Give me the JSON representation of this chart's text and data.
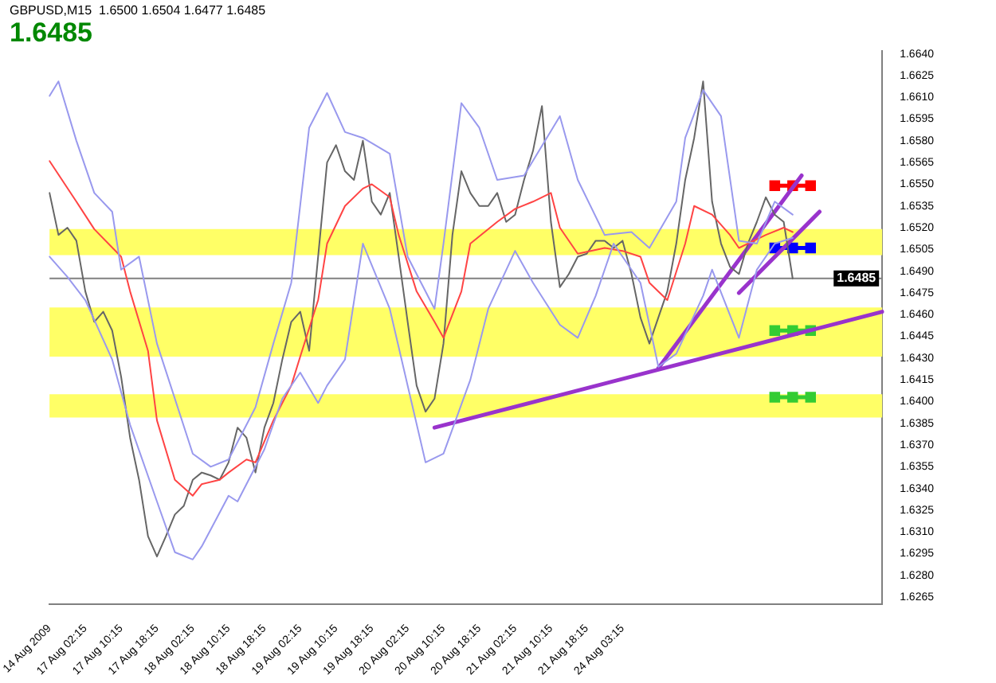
{
  "chart_data": {
    "type": "line",
    "title": "GBPUSD,M15  1.6500 1.6504 1.6477 1.6485",
    "subtitle": "1.6485",
    "categories": [
      "14 Aug 2009",
      null,
      null,
      null,
      "17 Aug 02:15",
      null,
      null,
      null,
      "17 Aug 10:15",
      null,
      null,
      null,
      "17 Aug 18:15",
      null,
      null,
      null,
      "18 Aug 02:15",
      null,
      null,
      null,
      "18 Aug 10:15",
      null,
      null,
      null,
      "18 Aug 18:15",
      null,
      null,
      null,
      "19 Aug 02:15",
      null,
      null,
      null,
      "19 Aug 10:15",
      null,
      null,
      null,
      "19 Aug 18:15",
      null,
      null,
      null,
      "20 Aug 02:15",
      null,
      null,
      null,
      "20 Aug 10:15",
      null,
      null,
      null,
      "20 Aug 18:15",
      null,
      null,
      null,
      "21 Aug 02:15",
      null,
      null,
      null,
      "21 Aug 10:15",
      null,
      null,
      null,
      "21 Aug 18:15",
      null,
      null,
      null,
      "24 Aug 03:15",
      null,
      null,
      null,
      null,
      null,
      null,
      null,
      null,
      null,
      null,
      null,
      null,
      null,
      null,
      null,
      null,
      null,
      null,
      null,
      null,
      null,
      null,
      null,
      null,
      null,
      null,
      null,
      null,
      null
    ],
    "ylim": [
      1.626,
      1.6642
    ],
    "yticks": [
      {
        "value": 1.664,
        "label": "1.6640"
      },
      {
        "value": 1.6625,
        "label": "1.6625"
      },
      {
        "value": 1.661,
        "label": "1.6610"
      },
      {
        "value": 1.6595,
        "label": "1.6595"
      },
      {
        "value": 1.658,
        "label": "1.6580"
      },
      {
        "value": 1.6565,
        "label": "1.6565"
      },
      {
        "value": 1.655,
        "label": "1.6550"
      },
      {
        "value": 1.6535,
        "label": "1.6535"
      },
      {
        "value": 1.652,
        "label": "1.6520"
      },
      {
        "value": 1.6505,
        "label": "1.6505"
      },
      {
        "value": 1.649,
        "label": "1.6490"
      },
      {
        "value": 1.6475,
        "label": "1.6475"
      },
      {
        "value": 1.646,
        "label": "1.6460"
      },
      {
        "value": 1.6445,
        "label": "1.6445"
      },
      {
        "value": 1.643,
        "label": "1.6430"
      },
      {
        "value": 1.6415,
        "label": "1.6415"
      },
      {
        "value": 1.64,
        "label": "1.6400"
      },
      {
        "value": 1.6385,
        "label": "1.6385"
      },
      {
        "value": 1.637,
        "label": "1.6370"
      },
      {
        "value": 1.6355,
        "label": "1.6355"
      },
      {
        "value": 1.634,
        "label": "1.6340"
      },
      {
        "value": 1.6325,
        "label": "1.6325"
      },
      {
        "value": 1.631,
        "label": "1.6310"
      },
      {
        "value": 1.6295,
        "label": "1.6295"
      },
      {
        "value": 1.628,
        "label": "1.6280"
      },
      {
        "value": 1.6265,
        "label": "1.6265"
      }
    ],
    "grid": false,
    "legend": false,
    "marker": "none",
    "line_style": "solid",
    "bands": [
      {
        "axis": "y",
        "from": 1.6501,
        "to": 1.6519,
        "color": "#ffff66"
      },
      {
        "axis": "y",
        "from": 1.6431,
        "to": 1.6465,
        "color": "#ffff66"
      },
      {
        "axis": "y",
        "from": 1.6389,
        "to": 1.6405,
        "color": "#ffff66"
      }
    ],
    "ref_lines": [
      {
        "axis": "y",
        "value": 1.6485,
        "label": "1.6485",
        "color": "#808080"
      }
    ],
    "series": [
      {
        "color": "#9999ee",
        "values": [
          1.6611,
          1.6621,
          null,
          1.658,
          null,
          1.6544,
          null,
          1.6531,
          1.6491,
          null,
          1.65,
          null,
          1.644,
          null,
          null,
          null,
          1.6364,
          null,
          1.6355,
          null,
          1.636,
          null,
          null,
          1.6396,
          null,
          1.644,
          null,
          1.6482,
          null,
          1.6589,
          null,
          1.6613,
          null,
          1.6586,
          null,
          1.6582,
          null,
          null,
          1.6571,
          null,
          1.65,
          null,
          null,
          1.6464,
          1.6509,
          null,
          1.6606,
          null,
          1.6589,
          null,
          1.6553,
          null,
          null,
          1.6556,
          null,
          null,
          null,
          1.6597,
          null,
          1.6553,
          null,
          null,
          1.6515,
          null,
          null,
          1.6517,
          null,
          1.6506,
          null,
          null,
          1.6538,
          1.6582,
          null,
          1.6615,
          null,
          1.6597,
          null,
          1.6511,
          null,
          1.6509,
          null,
          1.6538,
          null,
          1.6529,
          null,
          null,
          null,
          null,
          null,
          null,
          null,
          null,
          null,
          null
        ]
      },
      {
        "color": "#9999ee",
        "values": [
          1.65,
          null,
          1.6486,
          null,
          1.647,
          null,
          null,
          1.6429,
          null,
          1.6384,
          null,
          null,
          1.6331,
          null,
          1.6296,
          null,
          1.6291,
          1.63,
          null,
          null,
          1.6335,
          1.6331,
          null,
          null,
          1.6367,
          null,
          1.6402,
          null,
          1.642,
          null,
          1.6399,
          1.6411,
          null,
          1.6429,
          null,
          1.6509,
          null,
          null,
          1.6464,
          null,
          1.6411,
          null,
          1.6358,
          null,
          1.6364,
          null,
          null,
          1.6415,
          null,
          1.6464,
          null,
          null,
          1.6504,
          null,
          1.6482,
          null,
          null,
          1.6453,
          null,
          1.6444,
          null,
          1.6473,
          null,
          1.6509,
          null,
          null,
          1.6482,
          null,
          1.6424,
          null,
          1.6433,
          null,
          null,
          1.6473,
          1.6491,
          null,
          null,
          1.6444,
          null,
          1.6491,
          null,
          1.6509,
          null,
          1.6513,
          null,
          null,
          null,
          null,
          null,
          null,
          null,
          null,
          null,
          null
        ]
      },
      {
        "color": "#ff4444",
        "values": [
          1.6566,
          null,
          null,
          1.6538,
          null,
          1.6519,
          null,
          null,
          1.65,
          1.6476,
          null,
          1.6435,
          1.6387,
          null,
          1.6346,
          null,
          1.6335,
          1.6343,
          null,
          1.6346,
          1.6351,
          null,
          1.636,
          1.6358,
          null,
          1.6387,
          null,
          1.6411,
          1.6431,
          null,
          1.647,
          1.6509,
          null,
          1.6535,
          null,
          1.6547,
          1.655,
          null,
          1.6541,
          1.6515,
          null,
          1.6476,
          null,
          1.6455,
          1.6444,
          null,
          1.6476,
          1.6509,
          null,
          null,
          1.6524,
          null,
          1.6533,
          null,
          1.6538,
          null,
          1.6544,
          1.652,
          null,
          1.6502,
          null,
          null,
          1.6506,
          null,
          1.6504,
          null,
          1.65,
          1.6482,
          null,
          1.647,
          null,
          1.6509,
          1.6535,
          null,
          1.6529,
          null,
          1.6515,
          1.6506,
          null,
          null,
          1.6515,
          null,
          1.652,
          1.6517,
          null,
          null,
          null,
          null,
          null,
          null,
          null,
          null,
          null,
          null
        ]
      },
      {
        "color": "#666666",
        "values": [
          1.6544,
          1.6515,
          1.652,
          1.6511,
          1.6476,
          1.6455,
          1.6462,
          1.6449,
          1.6417,
          1.6375,
          1.6346,
          1.6307,
          1.6293,
          1.6307,
          1.6322,
          1.6328,
          1.6346,
          1.6351,
          1.6349,
          1.6346,
          1.6358,
          1.6382,
          1.6375,
          1.6351,
          1.6382,
          1.6399,
          1.6429,
          1.6455,
          1.6462,
          1.6435,
          1.65,
          1.6565,
          1.6577,
          1.6559,
          1.6553,
          1.658,
          1.6538,
          1.6529,
          1.6544,
          1.65,
          1.6455,
          1.6411,
          1.6393,
          1.6402,
          1.644,
          1.6515,
          1.6559,
          1.6544,
          1.6535,
          1.6535,
          1.6544,
          1.6524,
          1.6529,
          1.6553,
          1.6573,
          1.6604,
          1.6524,
          1.6479,
          1.6488,
          1.65,
          1.6502,
          1.6511,
          1.6511,
          1.6506,
          1.6511,
          1.6488,
          1.6458,
          1.644,
          1.6458,
          1.6476,
          1.6509,
          1.6553,
          1.6582,
          1.6621,
          1.6538,
          1.6509,
          1.6493,
          1.6488,
          1.6509,
          1.6524,
          1.6541,
          1.6529,
          1.6524,
          1.6485,
          null,
          null,
          null,
          null,
          null,
          null,
          null,
          null,
          null,
          null
        ]
      },
      {
        "color": "#9933cc",
        "values": [
          null,
          null,
          null,
          null,
          null,
          null,
          null,
          null,
          null,
          null,
          null,
          null,
          null,
          null,
          null,
          null,
          null,
          null,
          null,
          null,
          null,
          null,
          null,
          null,
          null,
          null,
          null,
          null,
          null,
          null,
          null,
          null,
          null,
          null,
          null,
          null,
          null,
          null,
          null,
          null,
          null,
          null,
          null,
          1.6382,
          null,
          null,
          null,
          null,
          null,
          null,
          null,
          null,
          null,
          null,
          null,
          null,
          null,
          null,
          null,
          null,
          null,
          null,
          null,
          null,
          null,
          null,
          null,
          null,
          null,
          null,
          null,
          null,
          null,
          null,
          null,
          null,
          null,
          null,
          null,
          null,
          null,
          null,
          null,
          null,
          null,
          null,
          null,
          null,
          null,
          null,
          null,
          null,
          null,
          1.6462
        ]
      },
      {
        "color": "#9933cc",
        "values": [
          null,
          null,
          null,
          null,
          null,
          null,
          null,
          null,
          null,
          null,
          null,
          null,
          null,
          null,
          null,
          null,
          null,
          null,
          null,
          null,
          null,
          null,
          null,
          null,
          null,
          null,
          null,
          null,
          null,
          null,
          null,
          null,
          null,
          null,
          null,
          null,
          null,
          null,
          null,
          null,
          null,
          null,
          null,
          null,
          null,
          null,
          null,
          null,
          null,
          null,
          null,
          null,
          null,
          null,
          null,
          null,
          null,
          null,
          null,
          null,
          null,
          null,
          null,
          null,
          null,
          null,
          null,
          null,
          1.6423,
          null,
          null,
          null,
          null,
          null,
          null,
          null,
          null,
          null,
          null,
          null,
          null,
          null,
          null,
          null,
          1.6556,
          null,
          null,
          null,
          null,
          null,
          null,
          null,
          null,
          null
        ]
      },
      {
        "color": "#9933cc",
        "values": [
          null,
          null,
          null,
          null,
          null,
          null,
          null,
          null,
          null,
          null,
          null,
          null,
          null,
          null,
          null,
          null,
          null,
          null,
          null,
          null,
          null,
          null,
          null,
          null,
          null,
          null,
          null,
          null,
          null,
          null,
          null,
          null,
          null,
          null,
          null,
          null,
          null,
          null,
          null,
          null,
          null,
          null,
          null,
          null,
          null,
          null,
          null,
          null,
          null,
          null,
          null,
          null,
          null,
          null,
          null,
          null,
          null,
          null,
          null,
          null,
          null,
          null,
          null,
          null,
          null,
          null,
          null,
          null,
          null,
          null,
          null,
          null,
          null,
          null,
          null,
          null,
          null,
          1.6475,
          null,
          null,
          null,
          null,
          null,
          null,
          null,
          null,
          1.6531,
          null,
          null,
          null,
          null,
          null,
          null,
          null
        ]
      },
      {
        "color": "#ff0000",
        "marker": "square",
        "values": [
          null,
          null,
          null,
          null,
          null,
          null,
          null,
          null,
          null,
          null,
          null,
          null,
          null,
          null,
          null,
          null,
          null,
          null,
          null,
          null,
          null,
          null,
          null,
          null,
          null,
          null,
          null,
          null,
          null,
          null,
          null,
          null,
          null,
          null,
          null,
          null,
          null,
          null,
          null,
          null,
          null,
          null,
          null,
          null,
          null,
          null,
          null,
          null,
          null,
          null,
          null,
          null,
          null,
          null,
          null,
          null,
          null,
          null,
          null,
          null,
          null,
          null,
          null,
          null,
          null,
          null,
          null,
          null,
          null,
          null,
          null,
          null,
          null,
          null,
          null,
          null,
          null,
          null,
          null,
          null,
          null,
          1.6549,
          null,
          1.6549,
          null,
          1.6549,
          null,
          null,
          null,
          null,
          null,
          null,
          null,
          null
        ]
      },
      {
        "color": "#0000ff",
        "marker": "square",
        "values": [
          null,
          null,
          null,
          null,
          null,
          null,
          null,
          null,
          null,
          null,
          null,
          null,
          null,
          null,
          null,
          null,
          null,
          null,
          null,
          null,
          null,
          null,
          null,
          null,
          null,
          null,
          null,
          null,
          null,
          null,
          null,
          null,
          null,
          null,
          null,
          null,
          null,
          null,
          null,
          null,
          null,
          null,
          null,
          null,
          null,
          null,
          null,
          null,
          null,
          null,
          null,
          null,
          null,
          null,
          null,
          null,
          null,
          null,
          null,
          null,
          null,
          null,
          null,
          null,
          null,
          null,
          null,
          null,
          null,
          null,
          null,
          null,
          null,
          null,
          null,
          null,
          null,
          null,
          null,
          null,
          null,
          1.6506,
          null,
          1.6506,
          null,
          1.6506,
          null,
          null,
          null,
          null,
          null,
          null,
          null,
          null
        ]
      },
      {
        "color": "#33cc33",
        "marker": "square",
        "values": [
          null,
          null,
          null,
          null,
          null,
          null,
          null,
          null,
          null,
          null,
          null,
          null,
          null,
          null,
          null,
          null,
          null,
          null,
          null,
          null,
          null,
          null,
          null,
          null,
          null,
          null,
          null,
          null,
          null,
          null,
          null,
          null,
          null,
          null,
          null,
          null,
          null,
          null,
          null,
          null,
          null,
          null,
          null,
          null,
          null,
          null,
          null,
          null,
          null,
          null,
          null,
          null,
          null,
          null,
          null,
          null,
          null,
          null,
          null,
          null,
          null,
          null,
          null,
          null,
          null,
          null,
          null,
          null,
          null,
          null,
          null,
          null,
          null,
          null,
          null,
          null,
          null,
          null,
          null,
          null,
          null,
          1.6449,
          null,
          1.6449,
          null,
          1.6449,
          null,
          null,
          null,
          null,
          null,
          null,
          null,
          null
        ]
      },
      {
        "color": "#33cc33",
        "marker": "square",
        "values": [
          null,
          null,
          null,
          null,
          null,
          null,
          null,
          null,
          null,
          null,
          null,
          null,
          null,
          null,
          null,
          null,
          null,
          null,
          null,
          null,
          null,
          null,
          null,
          null,
          null,
          null,
          null,
          null,
          null,
          null,
          null,
          null,
          null,
          null,
          null,
          null,
          null,
          null,
          null,
          null,
          null,
          null,
          null,
          null,
          null,
          null,
          null,
          null,
          null,
          null,
          null,
          null,
          null,
          null,
          null,
          null,
          null,
          null,
          null,
          null,
          null,
          null,
          null,
          null,
          null,
          null,
          null,
          null,
          null,
          null,
          null,
          null,
          null,
          null,
          null,
          null,
          null,
          null,
          null,
          null,
          null,
          1.6403,
          null,
          1.6403,
          null,
          1.6403,
          null,
          null,
          null,
          null,
          null,
          null,
          null,
          null
        ]
      }
    ]
  }
}
